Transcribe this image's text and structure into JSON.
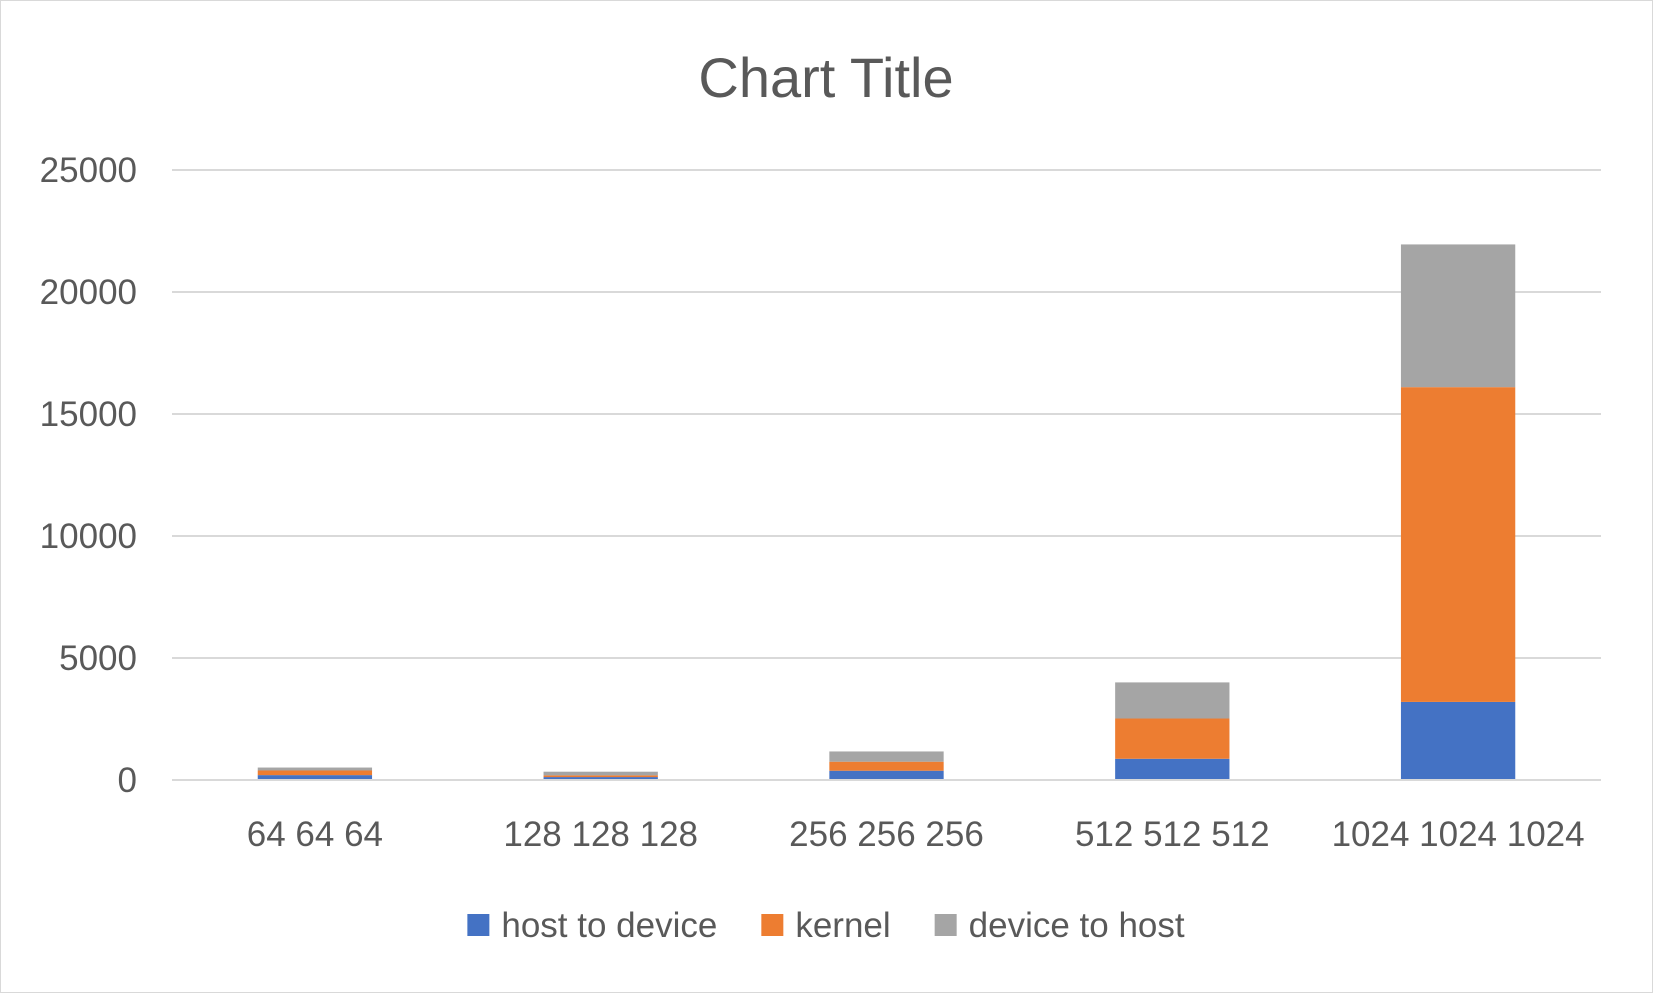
{
  "chart_data": {
    "type": "bar",
    "stacked": true,
    "title": "Chart Title",
    "categories": [
      "64 64 64",
      "128 128 128",
      "256 256 256",
      "512 512 512",
      "1024 1024 1024"
    ],
    "series": [
      {
        "name": "host to device",
        "color": "#4472c4",
        "values": [
          200,
          120,
          380,
          870,
          3200
        ]
      },
      {
        "name": "kernel",
        "color": "#ed7d31",
        "values": [
          190,
          70,
          370,
          1650,
          12900
        ]
      },
      {
        "name": "device to host",
        "color": "#a5a5a5",
        "values": [
          120,
          150,
          420,
          1480,
          5850
        ]
      }
    ],
    "ylim": [
      0,
      25000
    ],
    "yticks": [
      0,
      5000,
      10000,
      15000,
      20000,
      25000
    ],
    "grid": true,
    "legend": "bottom",
    "colors": {
      "gridline": "#d9d9d9",
      "text": "#595959",
      "axis": "#d9d9d9"
    }
  }
}
